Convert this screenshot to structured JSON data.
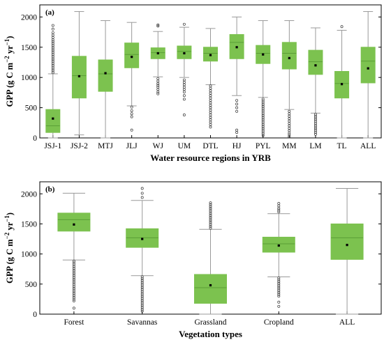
{
  "colors": {
    "box": "#7cc24f",
    "median": "#5a9e36",
    "whisker": "#999999",
    "outlier": "#333333",
    "mean": "#000000"
  },
  "chart_data": [
    {
      "type": "box",
      "panel_label": "(a)",
      "xlabel": "Water resource regions in YRB",
      "ylabel": "GPP (g C m",
      "ylabel_sup1": "−2",
      "ylabel_mid": " yr",
      "ylabel_sup2": "−1",
      "ylabel_end": ")",
      "ylim": [
        0,
        2200
      ],
      "yticks": [
        0,
        500,
        1000,
        1500,
        2000
      ],
      "ytick_labels": [
        "0",
        "500",
        "1000",
        "1500",
        "2000"
      ],
      "categories": [
        "JSJ-1",
        "JSJ-2",
        "MTJ",
        "JLJ",
        "WJ",
        "UM",
        "DTL",
        "HJ",
        "PYL",
        "MM",
        "LM",
        "TL",
        "ALL"
      ],
      "boxes": [
        {
          "whislo": 0,
          "q1": 90,
          "med": 200,
          "q3": 470,
          "whishi": 1060,
          "mean": 320,
          "outliers": [
            1080,
            1110,
            1140,
            1170,
            1200,
            1230,
            1260,
            1290,
            1320,
            1350,
            1380,
            1410,
            1440,
            1470,
            1500,
            1530,
            1560,
            1590,
            1620,
            1660,
            1700,
            1740,
            1800,
            1860
          ]
        },
        {
          "whislo": 50,
          "q1": 660,
          "med": 1030,
          "q3": 1350,
          "whishi": 2090,
          "mean": 1020,
          "outliers": []
        },
        {
          "whislo": 0,
          "q1": 770,
          "med": 1060,
          "q3": 1290,
          "whishi": 1940,
          "mean": 1070,
          "outliers": []
        },
        {
          "whislo": 530,
          "q1": 1160,
          "med": 1380,
          "q3": 1570,
          "whishi": 1910,
          "mean": 1340,
          "outliers": [
            510,
            450,
            400,
            350,
            130
          ]
        },
        {
          "whislo": 1010,
          "q1": 1310,
          "med": 1410,
          "q3": 1490,
          "whishi": 1760,
          "mean": 1400,
          "outliers": [
            1850,
            1870,
            980,
            940,
            900,
            870,
            840,
            800,
            760,
            730
          ]
        },
        {
          "whislo": 1000,
          "q1": 1310,
          "med": 1430,
          "q3": 1520,
          "whishi": 1830,
          "mean": 1400,
          "outliers": [
            1880,
            960,
            920,
            880,
            840,
            800,
            760,
            700,
            640,
            380
          ]
        },
        {
          "whislo": 880,
          "q1": 1270,
          "med": 1400,
          "q3": 1500,
          "whishi": 1810,
          "mean": 1370,
          "outliers": [
            860,
            820,
            780,
            740,
            700,
            660,
            620,
            580,
            540,
            500,
            460,
            420,
            380,
            340,
            300,
            260,
            220,
            180
          ]
        },
        {
          "whislo": 700,
          "q1": 1310,
          "med": 1580,
          "q3": 1710,
          "whishi": 2000,
          "mean": 1500,
          "outliers": [
            620,
            560,
            500,
            440,
            130,
            90
          ]
        },
        {
          "whislo": 670,
          "q1": 1230,
          "med": 1400,
          "q3": 1530,
          "whishi": 1940,
          "mean": 1380,
          "outliers": [
            640,
            610,
            580,
            550,
            520,
            490,
            460,
            430,
            400,
            370,
            340,
            310,
            280,
            250,
            220,
            190,
            160,
            130,
            100,
            70,
            40
          ]
        },
        {
          "whislo": 470,
          "q1": 1140,
          "med": 1400,
          "q3": 1580,
          "whishi": 1940,
          "mean": 1320,
          "outliers": [
            440,
            400,
            360,
            320,
            280,
            240,
            200,
            160,
            120,
            80,
            50,
            20
          ]
        },
        {
          "whislo": 410,
          "q1": 1050,
          "med": 1260,
          "q3": 1450,
          "whishi": 1820,
          "mean": 1200,
          "outliers": [
            390,
            360,
            330,
            300,
            270,
            240,
            210,
            180,
            150,
            120,
            90,
            60
          ]
        },
        {
          "whislo": 0,
          "q1": 660,
          "med": 900,
          "q3": 1100,
          "whishi": 1780,
          "mean": 890,
          "outliers": [
            1840
          ]
        },
        {
          "whislo": 0,
          "q1": 910,
          "med": 1270,
          "q3": 1500,
          "whishi": 2090,
          "mean": 1150,
          "outliers": []
        }
      ]
    },
    {
      "type": "box",
      "panel_label": "(b)",
      "xlabel": "Vegetation types",
      "ylabel": "GPP (g C m",
      "ylabel_sup1": "−2",
      "ylabel_mid": " yr",
      "ylabel_sup2": "−1",
      "ylabel_end": ")",
      "ylim": [
        0,
        2200
      ],
      "yticks": [
        0,
        500,
        1000,
        1500,
        2000
      ],
      "ytick_labels": [
        "0",
        "500",
        "1000",
        "1500",
        "2000"
      ],
      "categories": [
        "Forest",
        "Savannas",
        "Grassland",
        "Cropland",
        "ALL"
      ],
      "boxes": [
        {
          "whislo": 900,
          "q1": 1380,
          "med": 1570,
          "q3": 1680,
          "whishi": 2010,
          "mean": 1490,
          "outliers": [
            880,
            850,
            820,
            790,
            760,
            730,
            700,
            670,
            640,
            610,
            580,
            550,
            520,
            490,
            460,
            430,
            400,
            370,
            340,
            310,
            280,
            250,
            220,
            100
          ]
        },
        {
          "whislo": 640,
          "q1": 1110,
          "med": 1270,
          "q3": 1420,
          "whishi": 1890,
          "mean": 1250,
          "outliers": [
            1940,
            2010,
            2090,
            620,
            590,
            560,
            530,
            500,
            470,
            440,
            410,
            380,
            350,
            320,
            290,
            260,
            230,
            200,
            170,
            140,
            110,
            80,
            50
          ]
        },
        {
          "whislo": 0,
          "q1": 180,
          "med": 440,
          "q3": 660,
          "whishi": 1410,
          "mean": 480,
          "outliers": [
            1430,
            1460,
            1490,
            1520,
            1550,
            1580,
            1610,
            1640,
            1670,
            1700,
            1730,
            1760,
            1790,
            1820,
            1850
          ]
        },
        {
          "whislo": 620,
          "q1": 1030,
          "med": 1170,
          "q3": 1280,
          "whishi": 1670,
          "mean": 1140,
          "outliers": [
            1700,
            1730,
            1760,
            1800,
            1840,
            600,
            570,
            540,
            510,
            480,
            450,
            420,
            390,
            360,
            330,
            300,
            200,
            130
          ]
        },
        {
          "whislo": 0,
          "q1": 910,
          "med": 1270,
          "q3": 1500,
          "whishi": 2090,
          "mean": 1150,
          "outliers": []
        }
      ]
    }
  ]
}
